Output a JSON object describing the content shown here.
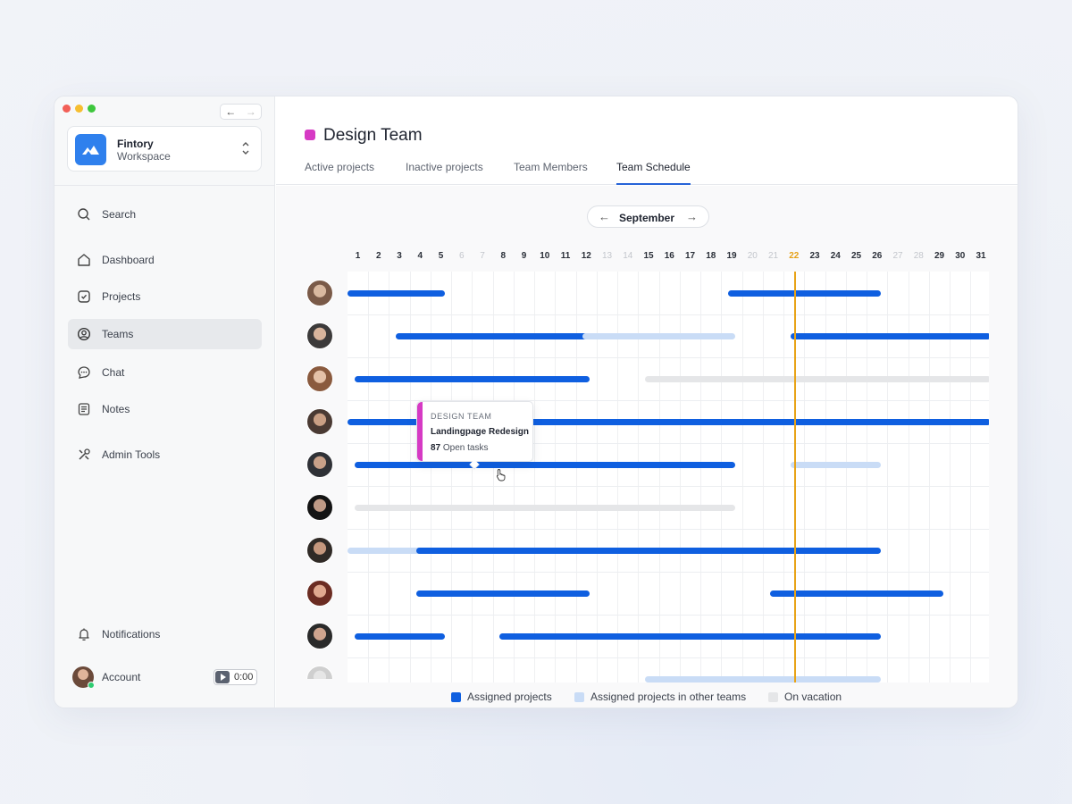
{
  "sidebar": {
    "workspace": {
      "name": "Fintory",
      "subtitle": "Workspace"
    },
    "nav": [
      {
        "label": "Search",
        "icon": "search-icon"
      },
      {
        "label": "Dashboard",
        "icon": "home-icon"
      },
      {
        "label": "Projects",
        "icon": "check-square-icon"
      },
      {
        "label": "Teams",
        "icon": "user-circle-icon",
        "active": true
      },
      {
        "label": "Chat",
        "icon": "chat-bubble-icon"
      },
      {
        "label": "Notes",
        "icon": "notes-icon"
      },
      {
        "label": "Admin Tools",
        "icon": "tools-icon"
      }
    ],
    "notifications_label": "Notifications",
    "account_label": "Account",
    "timer": "0:00"
  },
  "header": {
    "team_name": "Design Team",
    "team_color": "#d63ac4",
    "tabs": [
      {
        "label": "Active projects"
      },
      {
        "label": "Inactive projects"
      },
      {
        "label": "Team Members"
      },
      {
        "label": "Team Schedule",
        "active": true
      }
    ]
  },
  "schedule": {
    "month": "September",
    "today": 22,
    "days": [
      "1",
      "2",
      "3",
      "4",
      "5",
      "6",
      "7",
      "8",
      "9",
      "10",
      "11",
      "12",
      "13",
      "14",
      "15",
      "16",
      "17",
      "18",
      "19",
      "20",
      "21",
      "22",
      "23",
      "24",
      "25",
      "26",
      "27",
      "28",
      "29",
      "30",
      "31"
    ],
    "weekend_days": [
      6,
      7,
      13,
      14,
      20,
      21,
      27,
      28
    ],
    "colors": {
      "assigned": "#0f5fe0",
      "other": "#c9dcf6",
      "vacation": "#e5e6e8",
      "today": "#e8a317"
    },
    "rows": [
      {
        "bars": [
          {
            "type": "assigned",
            "start": 1,
            "end": 5
          },
          {
            "type": "assigned",
            "start": 19,
            "end": 26
          }
        ]
      },
      {
        "bars": [
          {
            "type": "assigned",
            "start": 3,
            "end": 12
          },
          {
            "type": "other",
            "start": 12,
            "end": 19
          },
          {
            "type": "assigned",
            "start": 22,
            "end": 31
          }
        ]
      },
      {
        "bars": [
          {
            "type": "assigned",
            "start": 1,
            "end": 12
          },
          {
            "type": "vacation",
            "start": 15,
            "end": 31
          }
        ]
      },
      {
        "bars": [
          {
            "type": "assigned",
            "start": 1,
            "end": 5
          },
          {
            "type": "assigned",
            "start": 8,
            "end": 31
          }
        ]
      },
      {
        "bars": [
          {
            "type": "assigned",
            "start": 1,
            "end": 19
          },
          {
            "type": "other",
            "start": 22,
            "end": 26
          }
        ]
      },
      {
        "bars": [
          {
            "type": "vacation",
            "start": 1,
            "end": 19
          }
        ]
      },
      {
        "bars": [
          {
            "type": "other",
            "start": 1,
            "end": 4
          },
          {
            "type": "assigned",
            "start": 4,
            "end": 26
          }
        ]
      },
      {
        "bars": [
          {
            "type": "assigned",
            "start": 4,
            "end": 12
          },
          {
            "type": "assigned",
            "start": 21,
            "end": 29
          }
        ]
      },
      {
        "bars": [
          {
            "type": "assigned",
            "start": 1,
            "end": 5
          },
          {
            "type": "assigned",
            "start": 8,
            "end": 26
          }
        ]
      },
      {
        "bars": [
          {
            "type": "other",
            "start": 15,
            "end": 26
          }
        ]
      }
    ],
    "tooltip": {
      "team": "DESIGN TEAM",
      "project": "Landingpage Redesign",
      "task_count": "87",
      "task_label": "Open tasks"
    }
  },
  "legend": [
    {
      "label": "Assigned projects",
      "color": "#0f5fe0"
    },
    {
      "label": "Assigned projects in other teams",
      "color": "#c9dcf6"
    },
    {
      "label": "On vacation",
      "color": "#e5e6e8"
    }
  ]
}
